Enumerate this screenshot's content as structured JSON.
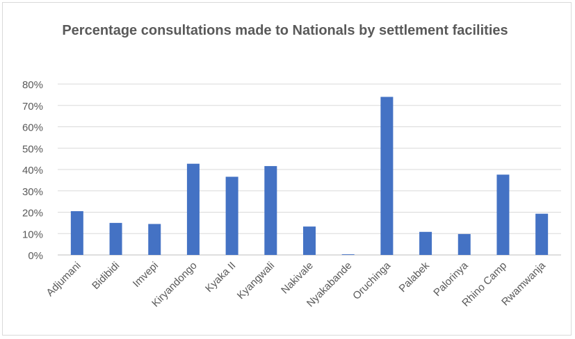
{
  "chart_data": {
    "type": "bar",
    "title": "Percentage consultations made to Nationals by settlement facilities",
    "xlabel": "",
    "ylabel": "",
    "categories": [
      "Adjumani",
      "Bidibidi",
      "Imvepi",
      "Kiryandongo",
      "Kyaka II",
      "Kyangwali",
      "Nakivale",
      "Nyakabande",
      "Oruchinga",
      "Palabek",
      "Palorinya",
      "Rhino Camp",
      "Rwamwanja"
    ],
    "series": [
      {
        "values": [
          20.5,
          15,
          14.5,
          42.7,
          36.6,
          41.6,
          13.3,
          0.3,
          74,
          10.8,
          9.8,
          37.6,
          19.3
        ]
      }
    ],
    "ylim": [
      0,
      80
    ],
    "yticks": [
      "0%",
      "10%",
      "20%",
      "30%",
      "40%",
      "50%",
      "60%",
      "70%",
      "80%"
    ],
    "grid": true,
    "legend": "none",
    "colors": {
      "bar": "#4472c4",
      "grid": "#d9d9d9",
      "axis_text": "#595959"
    }
  }
}
